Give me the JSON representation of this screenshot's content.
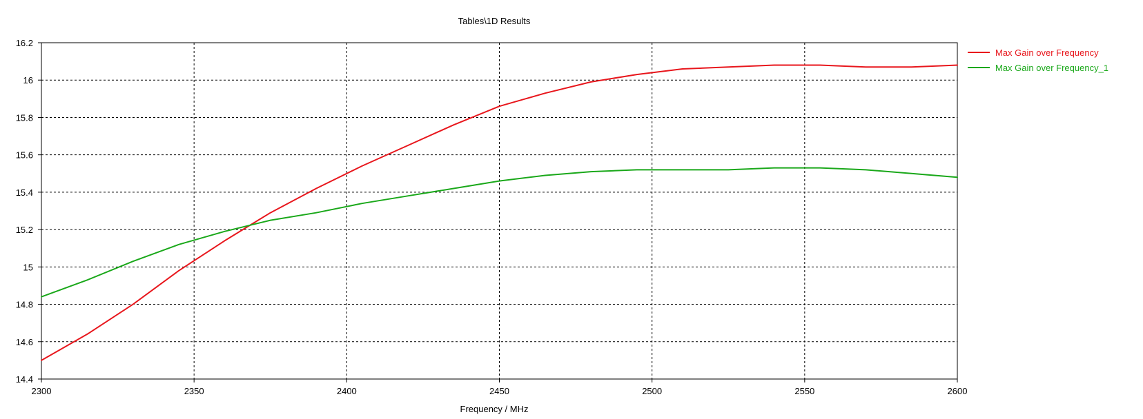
{
  "chart_data": {
    "type": "line",
    "title": "Tables\\1D Results",
    "xlabel": "Frequency / MHz",
    "ylabel": "",
    "xlim": [
      2300,
      2600
    ],
    "ylim": [
      14.4,
      16.2
    ],
    "x_ticks": [
      "2300",
      "2350",
      "2400",
      "2450",
      "2500",
      "2550",
      "2600"
    ],
    "y_ticks": [
      "14.4",
      "14.6",
      "14.8",
      "15",
      "15.2",
      "15.4",
      "15.6",
      "15.8",
      "16",
      "16.2"
    ],
    "grid": true,
    "grid_style": "dashed",
    "legend_position": "top-right, outside plot",
    "series": [
      {
        "name": "Max Gain over Frequency",
        "color": "#e8161c",
        "x": [
          2300,
          2315,
          2330,
          2345,
          2360,
          2375,
          2390,
          2405,
          2420,
          2435,
          2450,
          2465,
          2480,
          2495,
          2510,
          2525,
          2540,
          2555,
          2570,
          2585,
          2600
        ],
        "y": [
          14.5,
          14.64,
          14.8,
          14.98,
          15.14,
          15.29,
          15.42,
          15.54,
          15.65,
          15.76,
          15.86,
          15.93,
          15.99,
          16.03,
          16.06,
          16.07,
          16.08,
          16.08,
          16.07,
          16.07,
          16.08
        ]
      },
      {
        "name": "Max Gain over Frequency_1",
        "color": "#1aa81a",
        "x": [
          2300,
          2315,
          2330,
          2345,
          2360,
          2375,
          2390,
          2405,
          2420,
          2435,
          2450,
          2465,
          2480,
          2495,
          2510,
          2525,
          2540,
          2555,
          2570,
          2585,
          2600
        ],
        "y": [
          14.84,
          14.93,
          15.03,
          15.12,
          15.19,
          15.25,
          15.29,
          15.34,
          15.38,
          15.42,
          15.46,
          15.49,
          15.51,
          15.52,
          15.52,
          15.52,
          15.53,
          15.53,
          15.52,
          15.5,
          15.48
        ]
      }
    ]
  }
}
